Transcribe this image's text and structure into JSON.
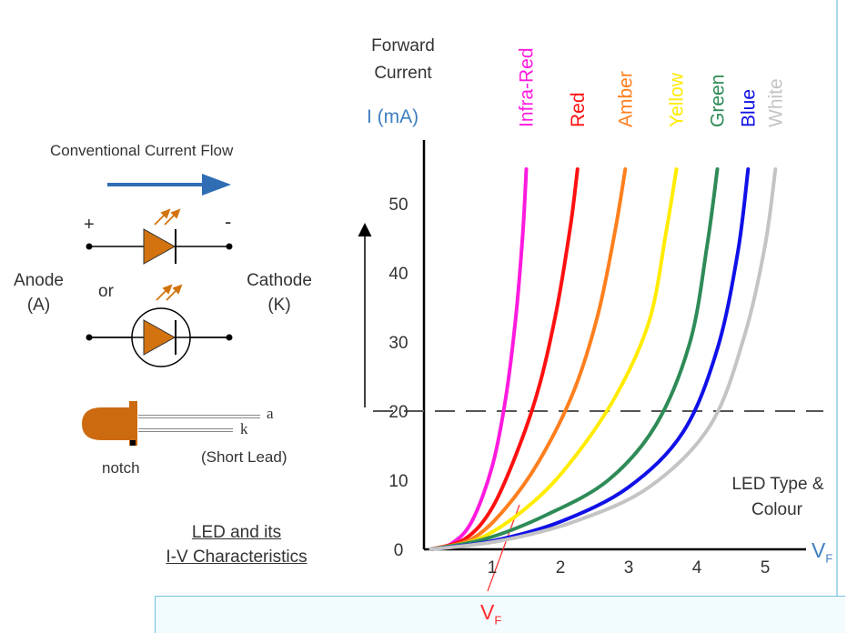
{
  "header": {
    "flow_label": "Conventional Current Flow",
    "y_title_line1": "Forward",
    "y_title_line2": "Current",
    "y_unit": "I (mA)"
  },
  "diagram": {
    "plus": "+",
    "minus": "-",
    "anode_line1": "Anode",
    "anode_line2": "(A)",
    "or": "or",
    "cathode_line1": "Cathode",
    "cathode_line2": "(K)",
    "lead_a": "a",
    "lead_k": "k",
    "notch": "notch",
    "short_lead": "(Short Lead)",
    "caption_line1": "LED and its",
    "caption_line2": "I-V Characteristics",
    "flow_arrow_color": "#2f6db5",
    "led_color": "#d2730f"
  },
  "chart_data": {
    "type": "line",
    "x_axis_label": "V",
    "x_axis_sub": "F",
    "marker_label": "V",
    "marker_sub": "F",
    "type_label_line1": "LED Type &",
    "type_label_line2": "Colour",
    "xticks": [
      "1",
      "2",
      "3",
      "4",
      "5"
    ],
    "yticks": [
      "0",
      "10",
      "20",
      "30",
      "40",
      "50"
    ],
    "xlim": [
      0,
      5.5
    ],
    "ylim": [
      0,
      60
    ],
    "reference_current": 20,
    "series": [
      {
        "name": "Infra-Red",
        "color": "#ff1adf",
        "x": [
          0.1,
          0.4,
          0.7,
          1.0,
          1.2,
          1.35,
          1.45,
          1.5
        ],
        "y": [
          0,
          0.8,
          4,
          12,
          22,
          34,
          46,
          55
        ]
      },
      {
        "name": "Red",
        "color": "#ff1010",
        "x": [
          0.1,
          0.6,
          1.0,
          1.4,
          1.7,
          1.95,
          2.15,
          2.25
        ],
        "y": [
          0,
          1.5,
          6,
          15,
          24,
          35,
          47,
          55
        ]
      },
      {
        "name": "Amber",
        "color": "#ff7f1e",
        "x": [
          0.1,
          0.7,
          1.2,
          1.7,
          2.2,
          2.55,
          2.8,
          2.95
        ],
        "y": [
          0,
          1.5,
          6,
          13,
          23,
          34,
          46,
          55
        ]
      },
      {
        "name": "Yellow",
        "color": "#ffec00",
        "x": [
          0.1,
          0.8,
          1.5,
          2.1,
          2.8,
          3.3,
          3.55,
          3.7
        ],
        "y": [
          0,
          1.5,
          6,
          12,
          22,
          33,
          46,
          55
        ]
      },
      {
        "name": "Green",
        "color": "#2e8b57",
        "x": [
          0.1,
          0.9,
          1.8,
          2.7,
          3.4,
          3.9,
          4.15,
          4.3
        ],
        "y": [
          0,
          1.5,
          5,
          10,
          18,
          30,
          44,
          55
        ]
      },
      {
        "name": "Blue",
        "color": "#1010e8",
        "x": [
          0.1,
          1.0,
          2.0,
          3.0,
          3.8,
          4.3,
          4.6,
          4.75
        ],
        "y": [
          0,
          1.2,
          4,
          9,
          17,
          29,
          43,
          55
        ]
      },
      {
        "name": "White",
        "color": "#c4c4c4",
        "x": [
          0.1,
          1.1,
          2.2,
          3.3,
          4.2,
          4.7,
          5.0,
          5.15
        ],
        "y": [
          0,
          1.2,
          4,
          9,
          18,
          31,
          44,
          55
        ]
      }
    ]
  }
}
